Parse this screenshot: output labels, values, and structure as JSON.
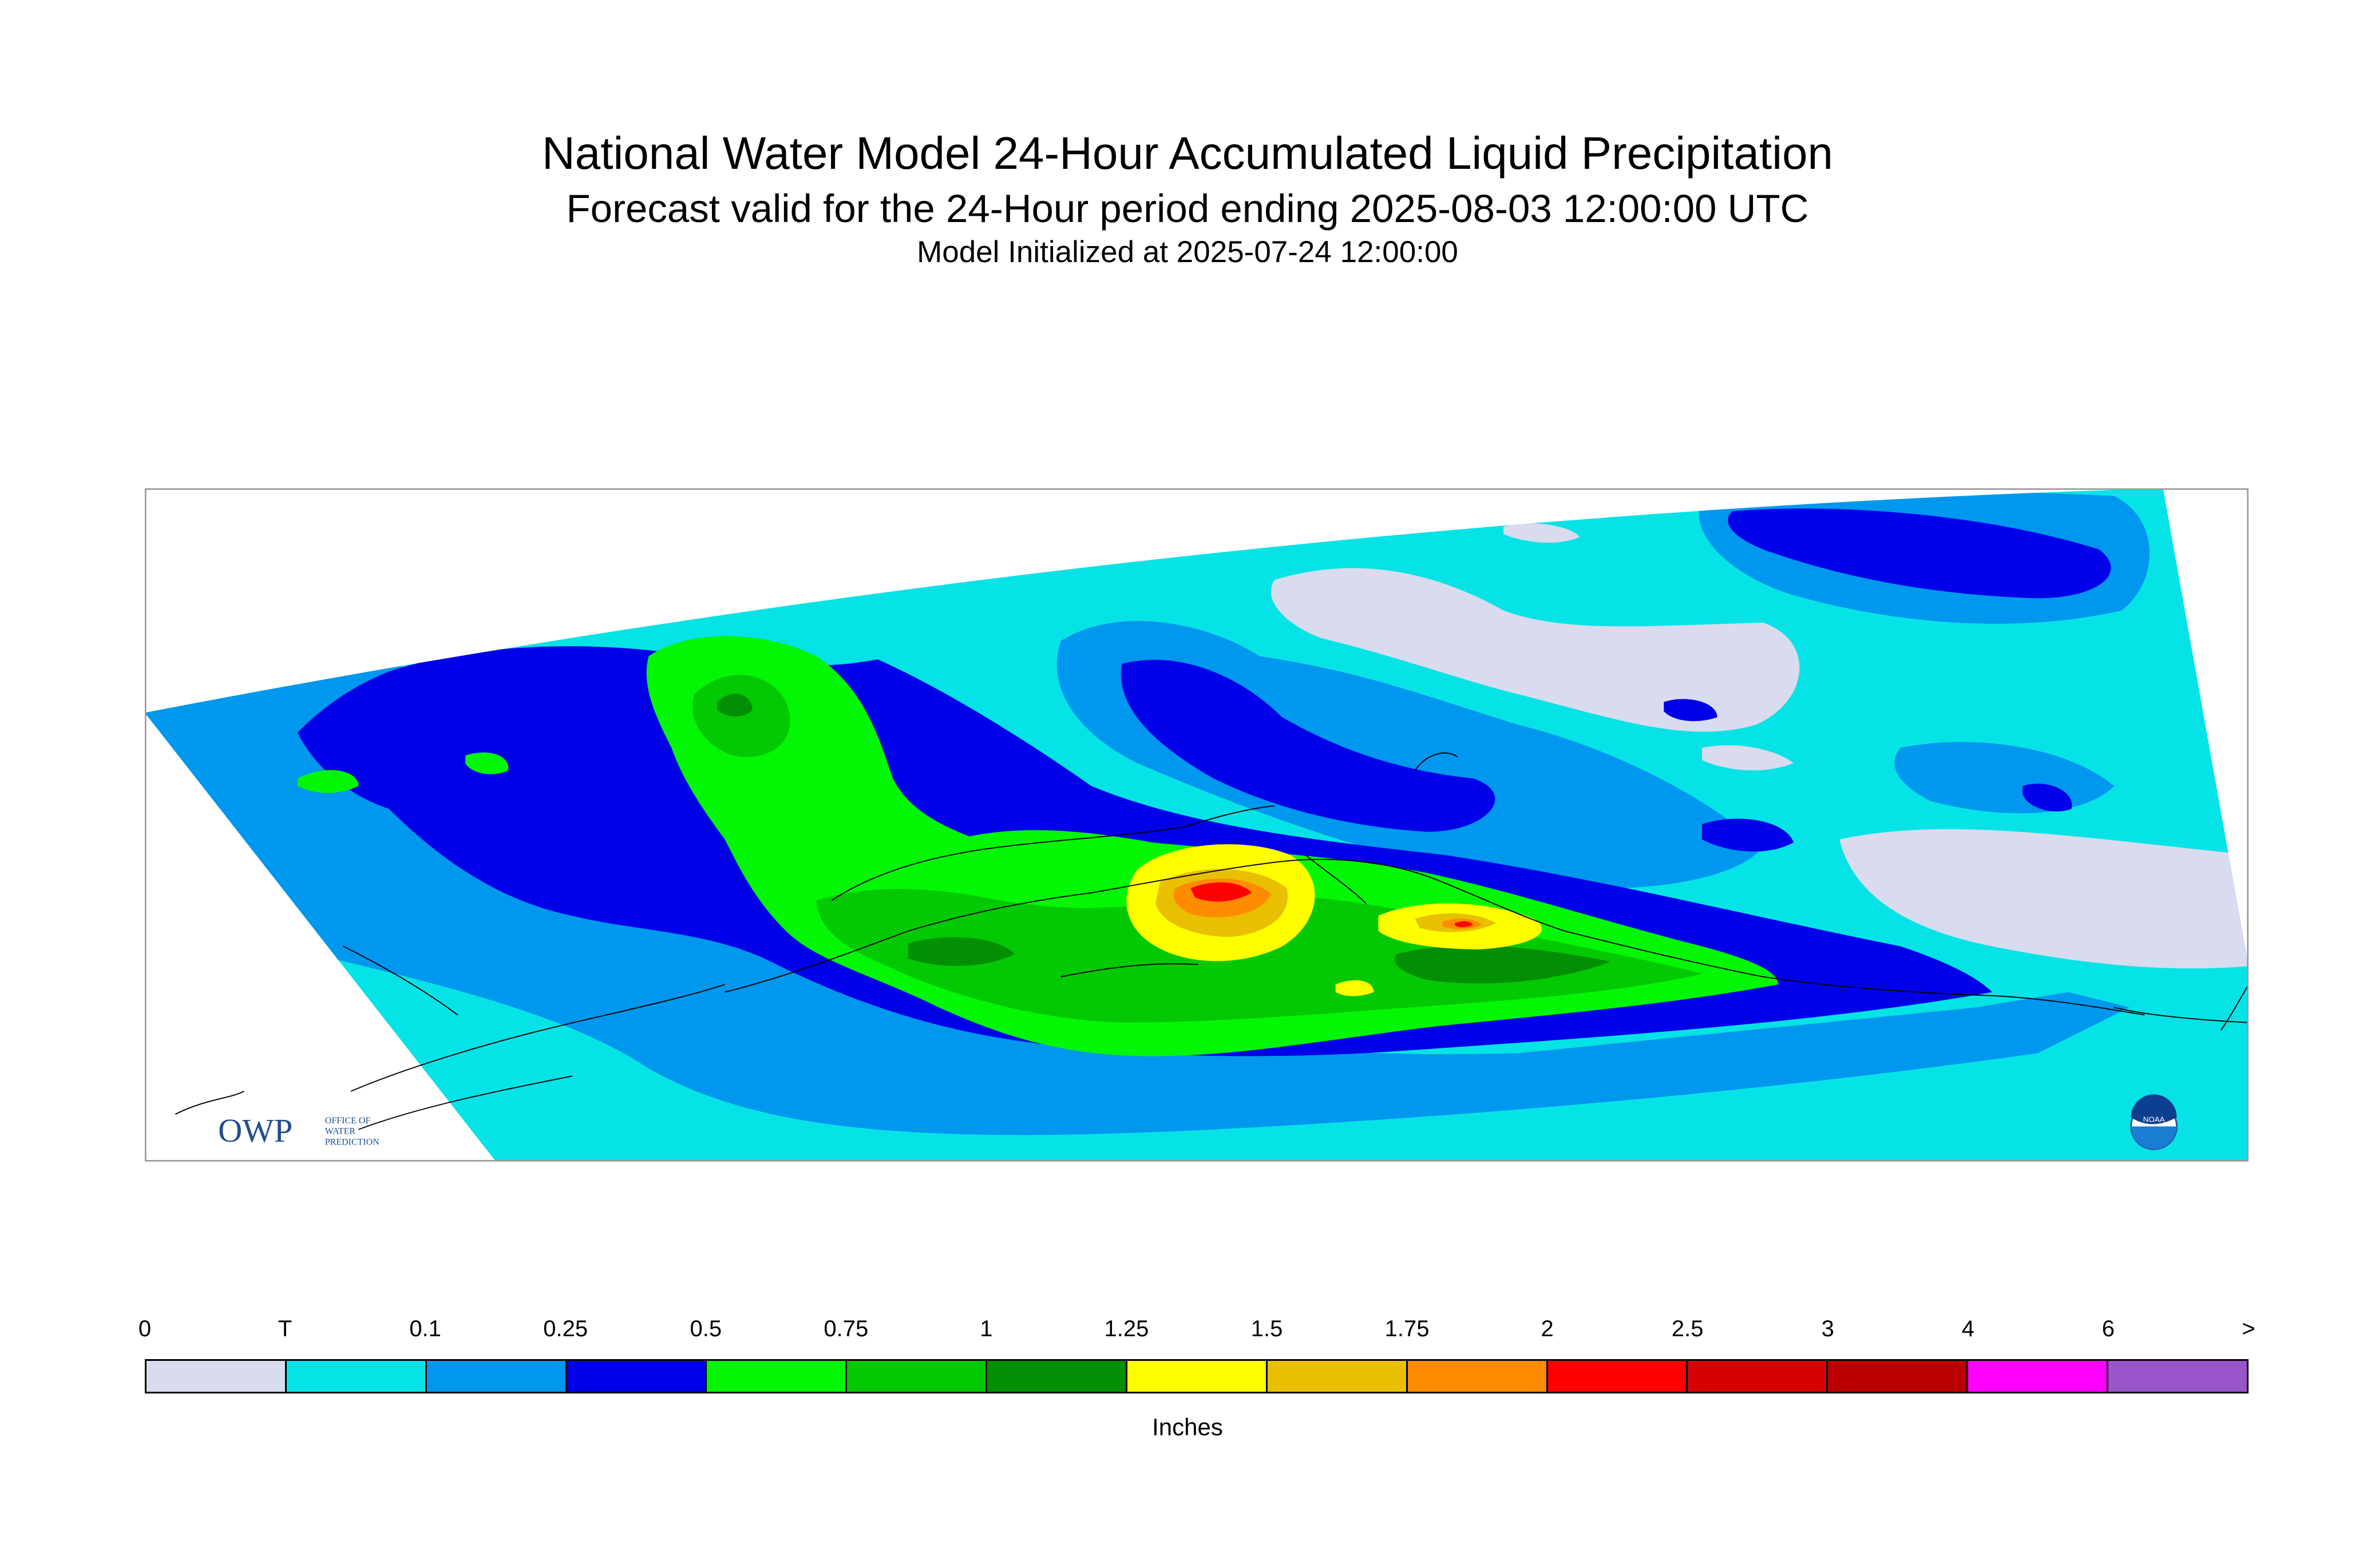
{
  "title": "National Water Model 24-Hour Accumulated Liquid Precipitation",
  "subtitle": "Forecast valid for the 24-Hour period ending 2025-08-03 12:00:00 UTC",
  "init_line": "Model Initialized at 2025-07-24 12:00:00",
  "owp_logo": {
    "mark": "OWP",
    "lines": [
      "OFFICE OF",
      "WATER",
      "PREDICTION"
    ]
  },
  "noaa_logo": {
    "mark": "NOAA"
  },
  "colors": {
    "lavender": "#d9dbee",
    "cyan": "#06e3e6",
    "sky_blue": "#0097ee",
    "blue": "#0000e8",
    "light_green": "#03f603",
    "green": "#02c902",
    "dark_green": "#038f03",
    "yellow": "#fefe00",
    "gold": "#e8c001",
    "orange": "#fe8c00",
    "red": "#fe0000",
    "crimson": "#d50000",
    "dark_red": "#bb0000",
    "magenta": "#fe00fe",
    "purple": "#9955c9",
    "coastline": "#000000"
  },
  "legend": {
    "ticks": [
      "0",
      "T",
      "0.1",
      "0.25",
      "0.5",
      "0.75",
      "1",
      "1.25",
      "1.5",
      "1.75",
      "2",
      "2.5",
      "3",
      "4",
      "6",
      ">"
    ],
    "swatches": [
      "#d9dbee",
      "#06e3e6",
      "#0097ee",
      "#0000e8",
      "#03f603",
      "#02c902",
      "#038f03",
      "#fefe00",
      "#e8c001",
      "#fe8c00",
      "#fe0000",
      "#d50000",
      "#bb0000",
      "#fe00fe",
      "#9955c9"
    ],
    "units": "Inches"
  }
}
